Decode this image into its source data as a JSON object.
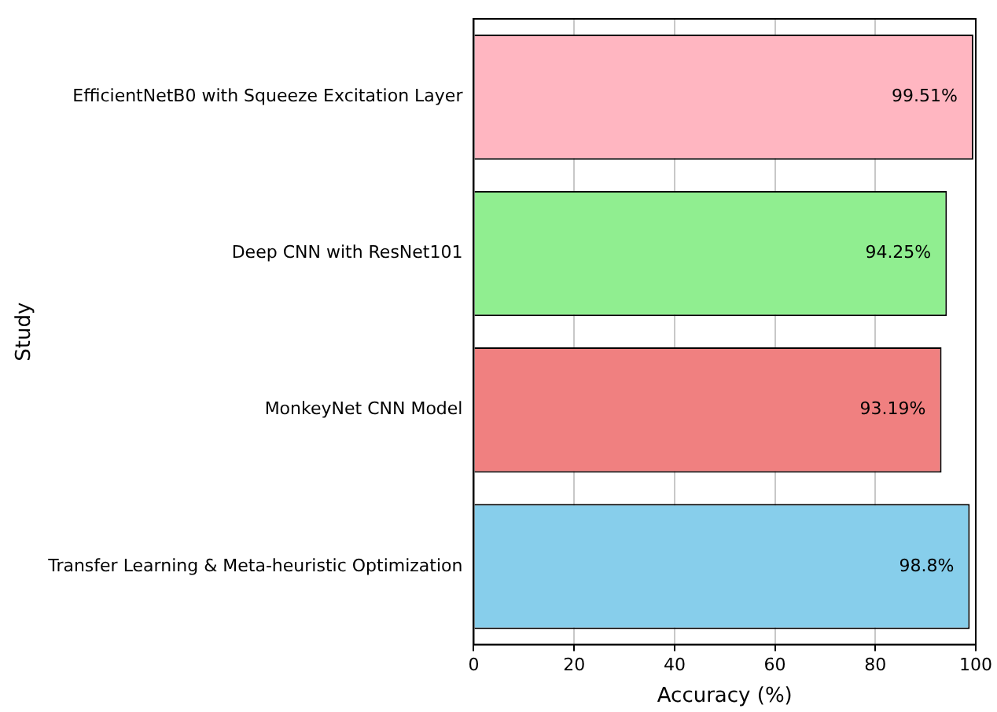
{
  "chart_data": {
    "type": "bar",
    "orientation": "horizontal",
    "xlabel": "Accuracy (%)",
    "ylabel": "Study",
    "categories": [
      "EfficientNetB0 with Squeeze Excitation Layer",
      "Deep CNN with ResNet101",
      "MonkeyNet CNN Model",
      "Transfer Learning & Meta-heuristic Optimization"
    ],
    "values": [
      99.51,
      94.25,
      93.19,
      98.8
    ],
    "colors": [
      "#ffb6c1",
      "#90ee90",
      "#f08080",
      "#87ceeb"
    ],
    "value_labels": [
      "99.51%",
      "94.25%",
      "93.19%",
      "98.8%"
    ],
    "xlim": [
      0,
      100
    ],
    "xticks": [
      0,
      20,
      40,
      60,
      80,
      100
    ],
    "grid": "x",
    "legend": false
  }
}
